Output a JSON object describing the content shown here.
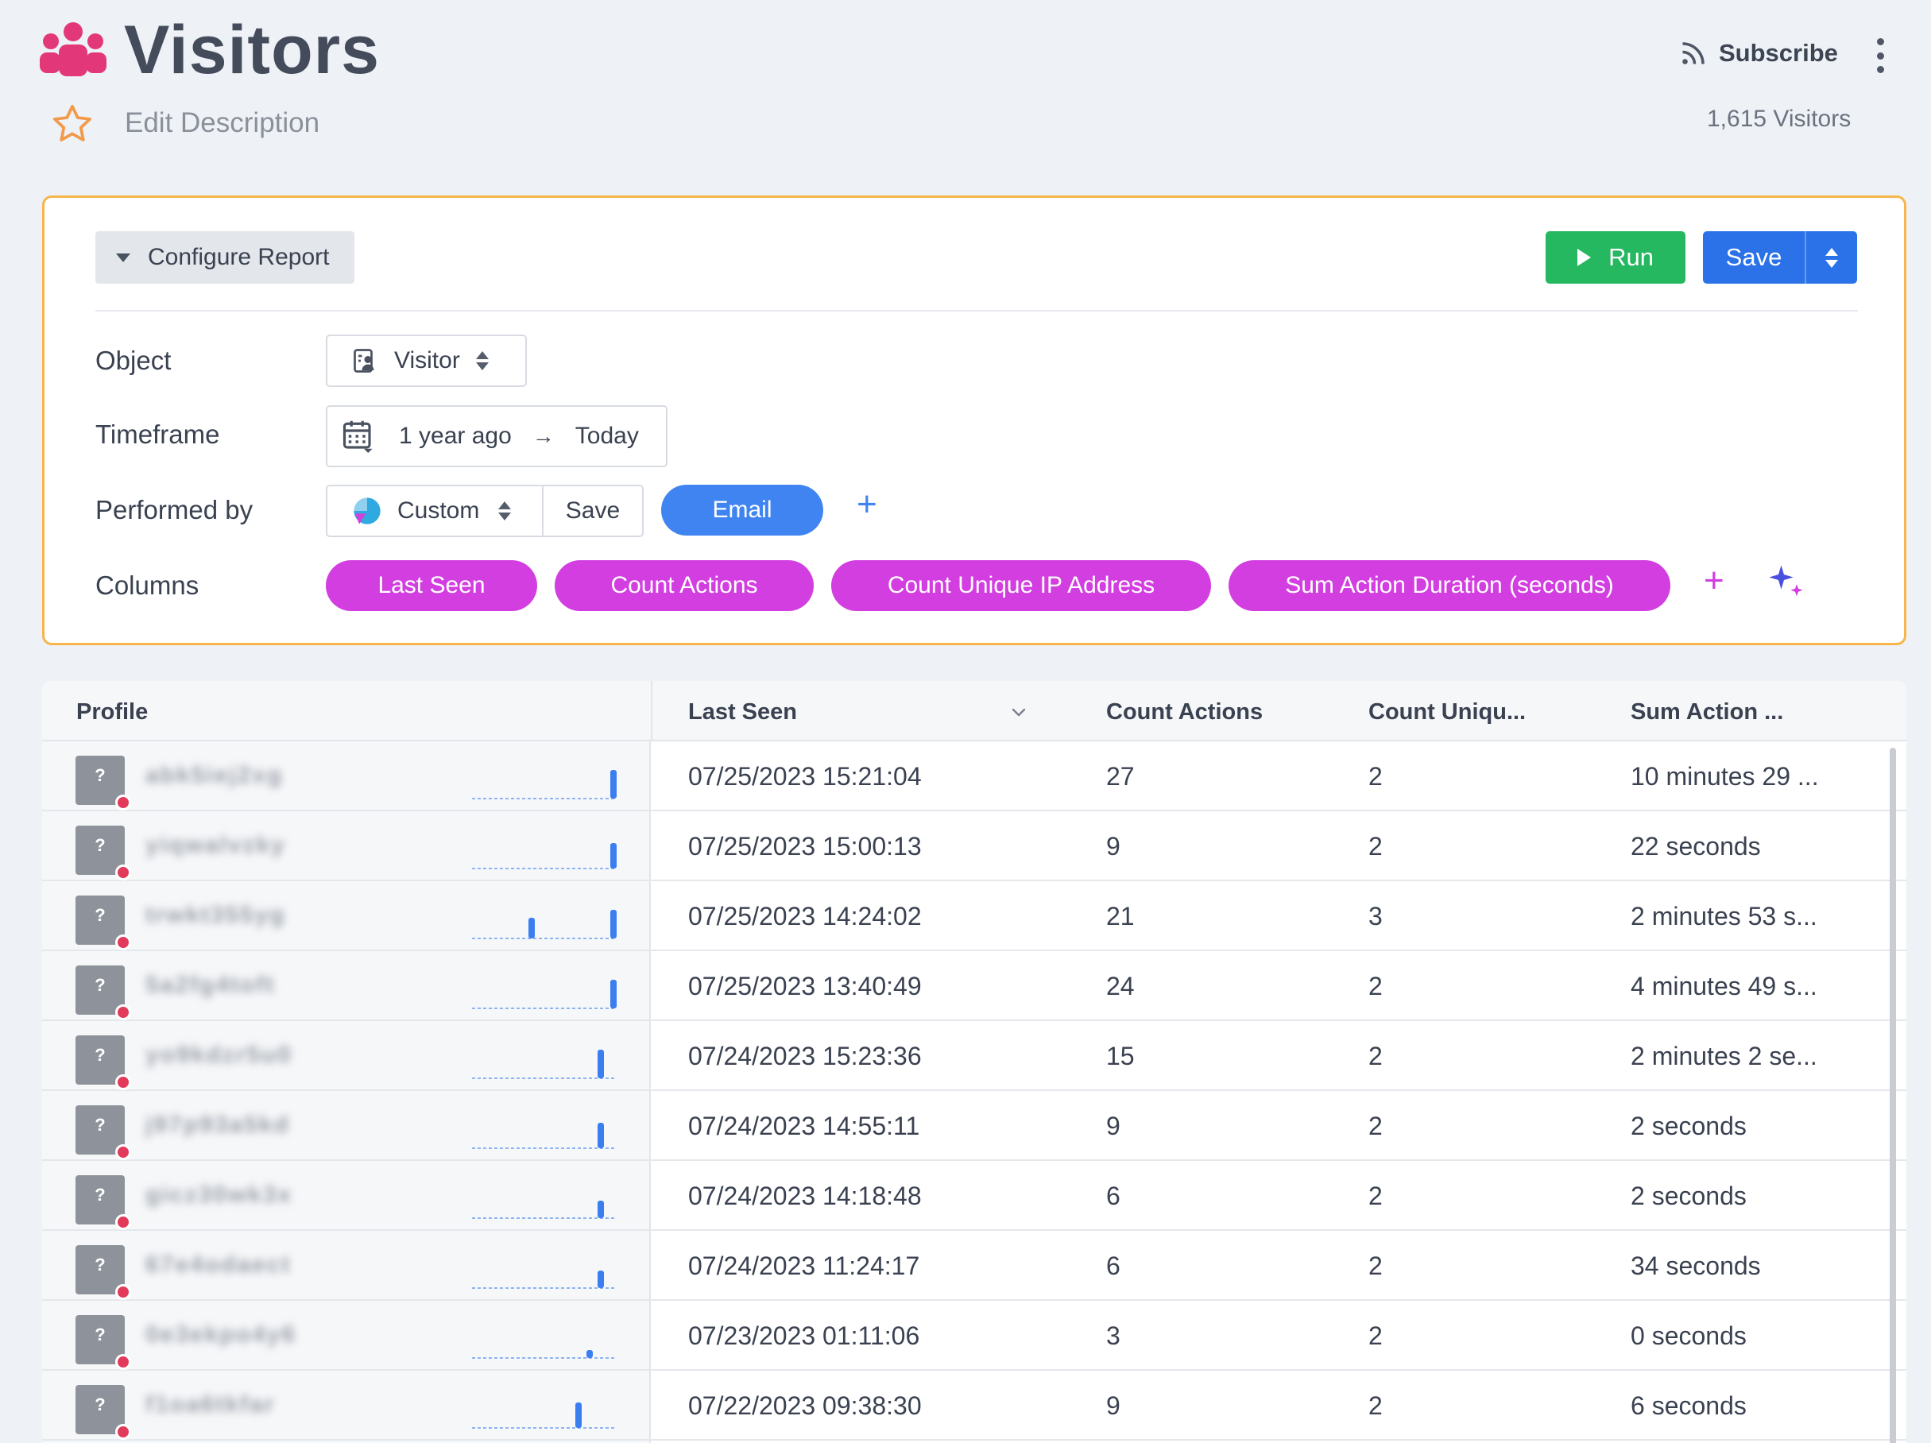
{
  "header": {
    "title": "Visitors",
    "edit_description": "Edit Description",
    "subscribe_label": "Subscribe",
    "visitor_count": "1,615 Visitors",
    "icons": {
      "title": "group-icon",
      "favorite": "star-icon",
      "subscribe": "rss-icon",
      "more": "kebab-menu-icon"
    }
  },
  "config": {
    "configure_label": "Configure Report",
    "run_label": "Run",
    "save_label": "Save",
    "object": {
      "label": "Object",
      "value": "Visitor"
    },
    "timeframe": {
      "label": "Timeframe",
      "from": "1 year ago",
      "to": "Today"
    },
    "performed_by": {
      "label": "Performed by",
      "value": "Custom",
      "save_label": "Save",
      "segment": "Email"
    },
    "columns": {
      "label": "Columns",
      "items": [
        "Last Seen",
        "Count Actions",
        "Count Unique IP Address",
        "Sum Action Duration (seconds)"
      ]
    }
  },
  "table": {
    "headers": [
      "Profile",
      "Last Seen",
      "Count Actions",
      "Count Uniqu...",
      "Sum Action ..."
    ],
    "rows": [
      {
        "id": "abk5iej2xg",
        "last_seen": "07/25/2023 15:21:04",
        "count_actions": "27",
        "count_unique_ip": "2",
        "sum_duration": "10 minutes 29 ..."
      },
      {
        "id": "yiqwalvzky",
        "last_seen": "07/25/2023 15:00:13",
        "count_actions": "9",
        "count_unique_ip": "2",
        "sum_duration": "22 seconds"
      },
      {
        "id": "trwkt355yg",
        "last_seen": "07/25/2023 14:24:02",
        "count_actions": "21",
        "count_unique_ip": "3",
        "sum_duration": "2 minutes 53 s..."
      },
      {
        "id": "5a2fg4toft",
        "last_seen": "07/25/2023 13:40:49",
        "count_actions": "24",
        "count_unique_ip": "2",
        "sum_duration": "4 minutes 49 s..."
      },
      {
        "id": "yo9kdzr5u0",
        "last_seen": "07/24/2023 15:23:36",
        "count_actions": "15",
        "count_unique_ip": "2",
        "sum_duration": "2 minutes 2 se..."
      },
      {
        "id": "j97p93a5kd",
        "last_seen": "07/24/2023 14:55:11",
        "count_actions": "9",
        "count_unique_ip": "2",
        "sum_duration": "2 seconds"
      },
      {
        "id": "gicz30wk3x",
        "last_seen": "07/24/2023 14:18:48",
        "count_actions": "6",
        "count_unique_ip": "2",
        "sum_duration": "2 seconds"
      },
      {
        "id": "67e4odaect",
        "last_seen": "07/24/2023 11:24:17",
        "count_actions": "6",
        "count_unique_ip": "2",
        "sum_duration": "34 seconds"
      },
      {
        "id": "0e3ekpo4y6",
        "last_seen": "07/23/2023 01:11:06",
        "count_actions": "3",
        "count_unique_ip": "2",
        "sum_duration": "0 seconds"
      },
      {
        "id": "f1oa6tkfar",
        "last_seen": "07/22/2023 09:38:30",
        "count_actions": "9",
        "count_unique_ip": "2",
        "sum_duration": "6 seconds"
      }
    ]
  },
  "colors": {
    "accent_orange": "#f7b54a",
    "run_green": "#25b860",
    "save_blue": "#2b72e8",
    "segment_blue": "#3f84f0",
    "column_pill_magenta": "#d23ee0",
    "spark_blue": "#3b7ef0"
  }
}
